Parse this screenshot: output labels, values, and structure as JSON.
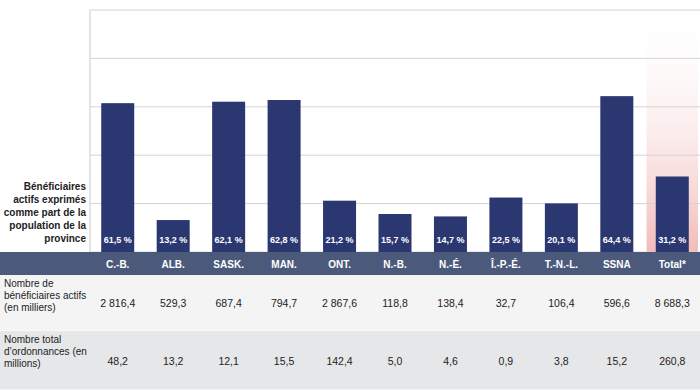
{
  "chart_data": {
    "type": "bar",
    "y_label": "Bénéficiaires actifs exprimés comme part de la population de la province",
    "categories": [
      "C.-B.",
      "ALB.",
      "SASK.",
      "MAN.",
      "ONT.",
      "N.-B.",
      "N.-É.",
      "Î.-P.-É.",
      "T.-N.-L.",
      "SSNA",
      "Total*"
    ],
    "values": [
      61.5,
      13.2,
      62.1,
      62.8,
      21.2,
      15.7,
      14.7,
      22.5,
      20.1,
      64.4,
      31.2
    ],
    "value_labels": [
      "61,5 %",
      "13,2 %",
      "62,1 %",
      "62,8 %",
      "21,2 %",
      "15,7 %",
      "14,7 %",
      "22,5 %",
      "20,1 %",
      "64,4 %",
      "31,2 %"
    ],
    "color": "#2b3770",
    "ylim": [
      0,
      100
    ],
    "yticks": [
      0,
      20,
      40,
      60,
      80,
      100
    ],
    "grid": true,
    "tick_labels": "x",
    "data_labels": true
  },
  "table": {
    "rows": [
      {
        "label": "Nombre de bénéficiaires actifs (en milliers)",
        "cells": [
          "2 816,4",
          "529,3",
          "687,4",
          "794,7",
          "2 867,6",
          "118,8",
          "138,4",
          "32,7",
          "106,4",
          "596,6",
          "8 688,3"
        ]
      },
      {
        "label": "Nombre total d’ordonnances (en millions)",
        "cells": [
          "48,2",
          "13,2",
          "12,1",
          "15,5",
          "142,4",
          "5,0",
          "4,6",
          "0,9",
          "3,8",
          "15,2",
          "260,8"
        ]
      }
    ]
  }
}
